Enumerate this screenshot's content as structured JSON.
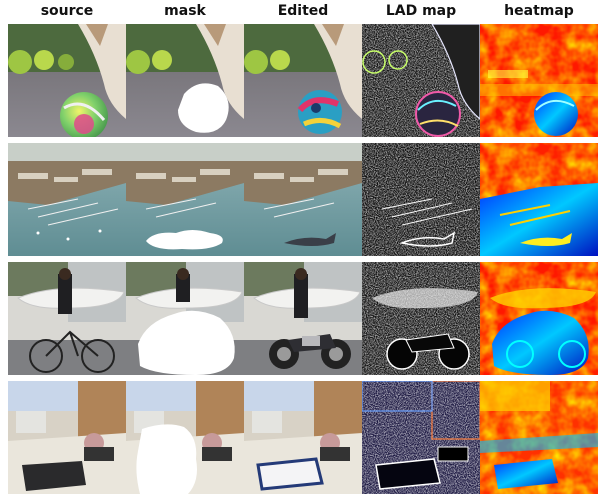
{
  "columns": [
    {
      "key": "source",
      "label": "source"
    },
    {
      "key": "mask",
      "label": "mask"
    },
    {
      "key": "edited",
      "label": "Edited"
    },
    {
      "key": "lad",
      "label": "LAD map"
    },
    {
      "key": "heatmap",
      "label": "heatmap"
    }
  ],
  "rows": [
    {
      "id": "ball",
      "subject": "tennis-ball-with-dog"
    },
    {
      "id": "harbor",
      "subject": "harbor-with-boats"
    },
    {
      "id": "bicycle",
      "subject": "man-with-surfboard-on-bike"
    },
    {
      "id": "office",
      "subject": "office-desk"
    }
  ]
}
